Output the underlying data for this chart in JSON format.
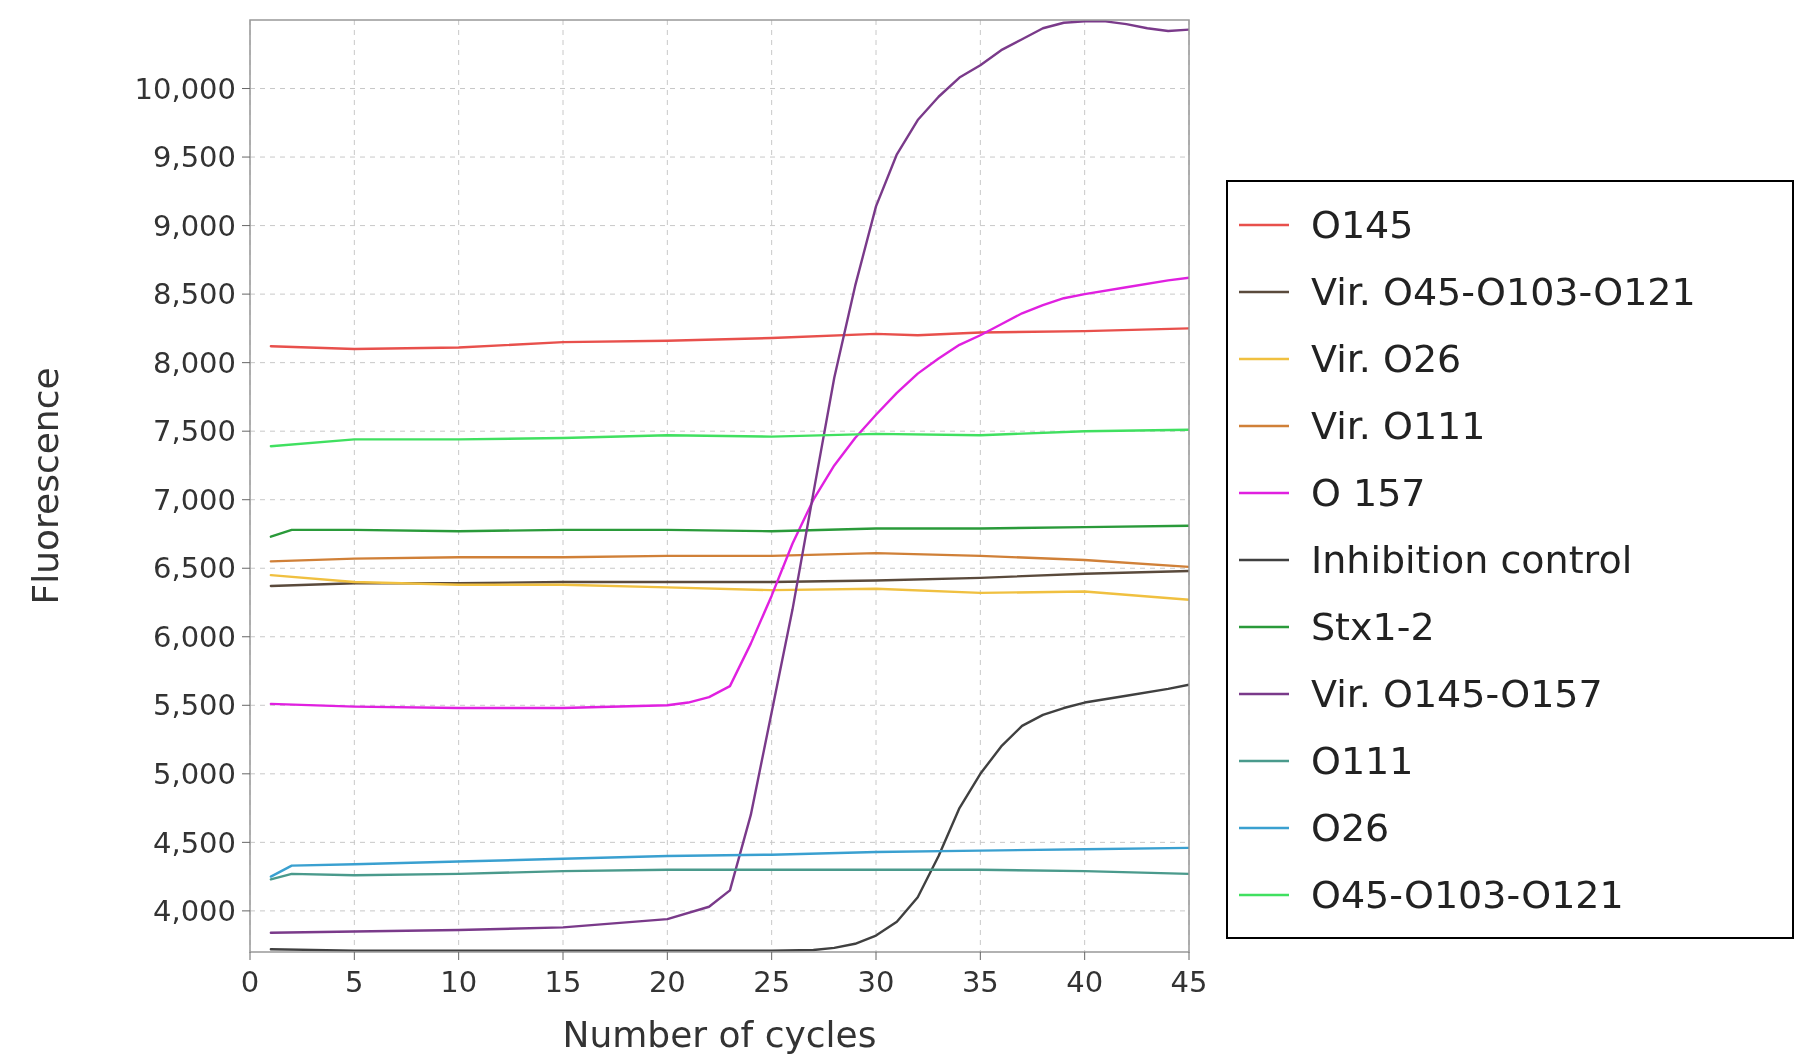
{
  "chart_data": {
    "type": "line",
    "xlabel": "Number of cycles",
    "ylabel": "Fluorescence",
    "xlim": [
      0,
      45
    ],
    "ylim": [
      3700,
      10500
    ],
    "xticks": [
      0,
      5,
      10,
      15,
      20,
      25,
      30,
      35,
      40,
      45
    ],
    "yticks": [
      {
        "value": 4000,
        "label": "4,000"
      },
      {
        "value": 4500,
        "label": "4,500"
      },
      {
        "value": 5000,
        "label": "5,000"
      },
      {
        "value": 5500,
        "label": "5,500"
      },
      {
        "value": 6000,
        "label": "6,000"
      },
      {
        "value": 6500,
        "label": "6,500"
      },
      {
        "value": 7000,
        "label": "7,000"
      },
      {
        "value": 7500,
        "label": "7,500"
      },
      {
        "value": 8000,
        "label": "8,000"
      },
      {
        "value": 8500,
        "label": "8,500"
      },
      {
        "value": 9000,
        "label": "9,000"
      },
      {
        "value": 9500,
        "label": "9,500"
      },
      {
        "value": 10000,
        "label": "10,000"
      }
    ],
    "grid": true,
    "legend": "right",
    "marker": "none",
    "line_style": "solid",
    "series": [
      {
        "name": "O145",
        "color": "#e8504c",
        "x": [
          1,
          5,
          10,
          15,
          20,
          25,
          30,
          32,
          35,
          40,
          45
        ],
        "values": [
          8120,
          8100,
          8110,
          8150,
          8160,
          8180,
          8210,
          8200,
          8220,
          8230,
          8250
        ]
      },
      {
        "name": "Vir. O45-O103-O121",
        "color": "#5a4a3c",
        "x": [
          1,
          5,
          10,
          15,
          20,
          25,
          30,
          35,
          40,
          45
        ],
        "values": [
          6370,
          6390,
          6390,
          6400,
          6400,
          6400,
          6410,
          6430,
          6460,
          6480
        ]
      },
      {
        "name": "Vir. O26",
        "color": "#f0c040",
        "x": [
          1,
          5,
          10,
          15,
          20,
          25,
          30,
          35,
          40,
          45
        ],
        "values": [
          6450,
          6400,
          6380,
          6380,
          6360,
          6340,
          6350,
          6320,
          6330,
          6270
        ]
      },
      {
        "name": "Vir. O111",
        "color": "#d08038",
        "x": [
          1,
          5,
          10,
          15,
          20,
          25,
          30,
          35,
          40,
          45
        ],
        "values": [
          6550,
          6570,
          6580,
          6580,
          6590,
          6590,
          6610,
          6590,
          6560,
          6510
        ]
      },
      {
        "name": "O 157",
        "color": "#e020e0",
        "x": [
          1,
          5,
          10,
          15,
          20,
          21,
          22,
          23,
          24,
          25,
          26,
          27,
          28,
          29,
          30,
          31,
          32,
          33,
          34,
          35,
          36,
          37,
          38,
          39,
          40,
          42,
          44,
          45
        ],
        "values": [
          5510,
          5490,
          5480,
          5480,
          5500,
          5520,
          5560,
          5640,
          5950,
          6300,
          6680,
          7000,
          7250,
          7450,
          7620,
          7780,
          7920,
          8030,
          8130,
          8200,
          8280,
          8360,
          8420,
          8470,
          8500,
          8550,
          8600,
          8620
        ]
      },
      {
        "name": "Inhibition control",
        "color": "#404040",
        "x": [
          1,
          5,
          10,
          15,
          20,
          25,
          27,
          28,
          29,
          30,
          31,
          32,
          33,
          34,
          35,
          36,
          37,
          38,
          39,
          40,
          42,
          44,
          45
        ],
        "values": [
          3720,
          3710,
          3710,
          3710,
          3710,
          3710,
          3715,
          3730,
          3760,
          3820,
          3920,
          4100,
          4400,
          4750,
          5000,
          5200,
          5350,
          5430,
          5480,
          5520,
          5570,
          5620,
          5650
        ]
      },
      {
        "name": "Stx1-2",
        "color": "#2a9a3a",
        "x": [
          1,
          2,
          5,
          10,
          15,
          20,
          25,
          30,
          35,
          40,
          45
        ],
        "values": [
          6730,
          6780,
          6780,
          6770,
          6780,
          6780,
          6770,
          6790,
          6790,
          6800,
          6810
        ]
      },
      {
        "name": "Vir. O145-O157",
        "color": "#7a3a8a",
        "x": [
          1,
          5,
          10,
          15,
          20,
          22,
          23,
          24,
          25,
          26,
          27,
          28,
          29,
          30,
          31,
          32,
          33,
          34,
          35,
          36,
          37,
          38,
          39,
          40,
          41,
          42,
          43,
          44,
          45
        ],
        "values": [
          3840,
          3850,
          3860,
          3880,
          3940,
          4030,
          4150,
          4700,
          5450,
          6200,
          7050,
          7890,
          8560,
          9140,
          9520,
          9770,
          9940,
          10080,
          10170,
          10280,
          10360,
          10440,
          10480,
          10490,
          10490,
          10470,
          10440,
          10420,
          10430
        ]
      },
      {
        "name": "O111",
        "color": "#4a9a8c",
        "x": [
          1,
          2,
          5,
          10,
          15,
          20,
          25,
          30,
          35,
          40,
          45
        ],
        "values": [
          4230,
          4270,
          4260,
          4270,
          4290,
          4300,
          4300,
          4300,
          4300,
          4290,
          4270
        ]
      },
      {
        "name": "O26",
        "color": "#3aa0d0",
        "x": [
          1,
          2,
          5,
          10,
          15,
          20,
          25,
          30,
          35,
          40,
          45
        ],
        "values": [
          4250,
          4330,
          4340,
          4360,
          4380,
          4400,
          4410,
          4430,
          4440,
          4450,
          4460
        ]
      },
      {
        "name": "O45-O103-O121",
        "color": "#40e060",
        "x": [
          1,
          5,
          10,
          15,
          20,
          25,
          30,
          35,
          40,
          45
        ],
        "values": [
          7390,
          7440,
          7440,
          7450,
          7470,
          7460,
          7480,
          7470,
          7500,
          7510
        ]
      }
    ]
  }
}
